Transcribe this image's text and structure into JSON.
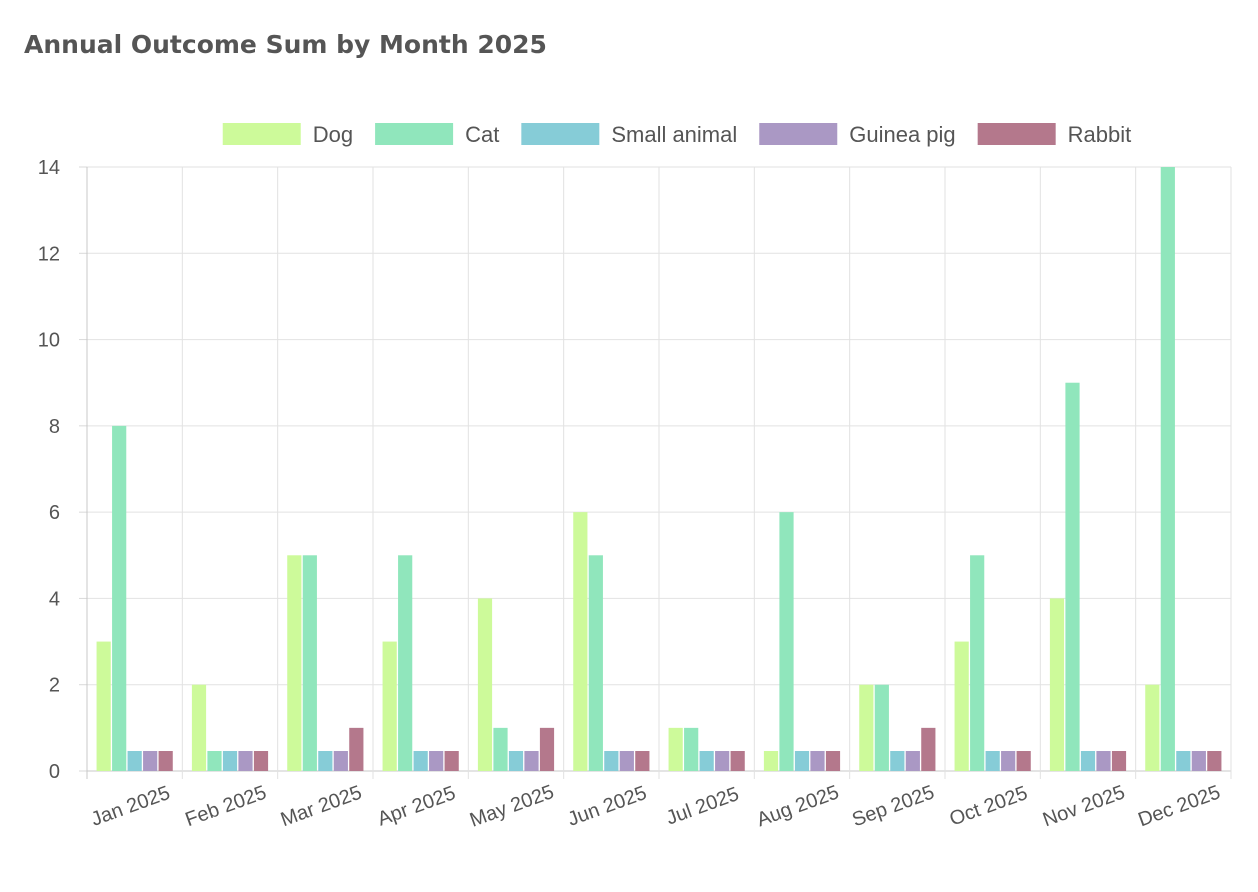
{
  "chart_data": {
    "type": "bar",
    "title": "Annual Outcome Sum by Month 2025",
    "xlabel": "",
    "ylabel": "",
    "ylim": [
      0,
      14
    ],
    "yticks": [
      "0",
      "2",
      "4",
      "6",
      "8",
      "10",
      "12",
      "14"
    ],
    "grid": true,
    "legend_position": "top-center",
    "categories": [
      "Jan 2025",
      "Feb 2025",
      "Mar 2025",
      "Apr 2025",
      "May 2025",
      "Jun 2025",
      "Jul 2025",
      "Aug 2025",
      "Sep 2025",
      "Oct 2025",
      "Nov 2025",
      "Dec 2025"
    ],
    "series": [
      {
        "name": "Dog",
        "color": "#cdfa9a",
        "values": [
          3,
          2,
          5,
          3,
          4,
          6,
          1,
          0,
          2,
          3,
          4,
          2
        ]
      },
      {
        "name": "Cat",
        "color": "#90e6bc",
        "values": [
          8,
          0,
          5,
          5,
          1,
          5,
          1,
          6,
          2,
          5,
          9,
          14
        ]
      },
      {
        "name": "Small animal",
        "color": "#86ccd7",
        "values": [
          0,
          0,
          0,
          0,
          0,
          0,
          0,
          0,
          0,
          0,
          0,
          0
        ]
      },
      {
        "name": "Guinea pig",
        "color": "#aa98c4",
        "values": [
          0,
          0,
          0,
          0,
          0,
          0,
          0,
          0,
          0,
          0,
          0,
          0
        ]
      },
      {
        "name": "Rabbit",
        "color": "#b4788c",
        "values": [
          0,
          0,
          1,
          0,
          1,
          0,
          0,
          0,
          1,
          0,
          0,
          0
        ]
      }
    ]
  }
}
